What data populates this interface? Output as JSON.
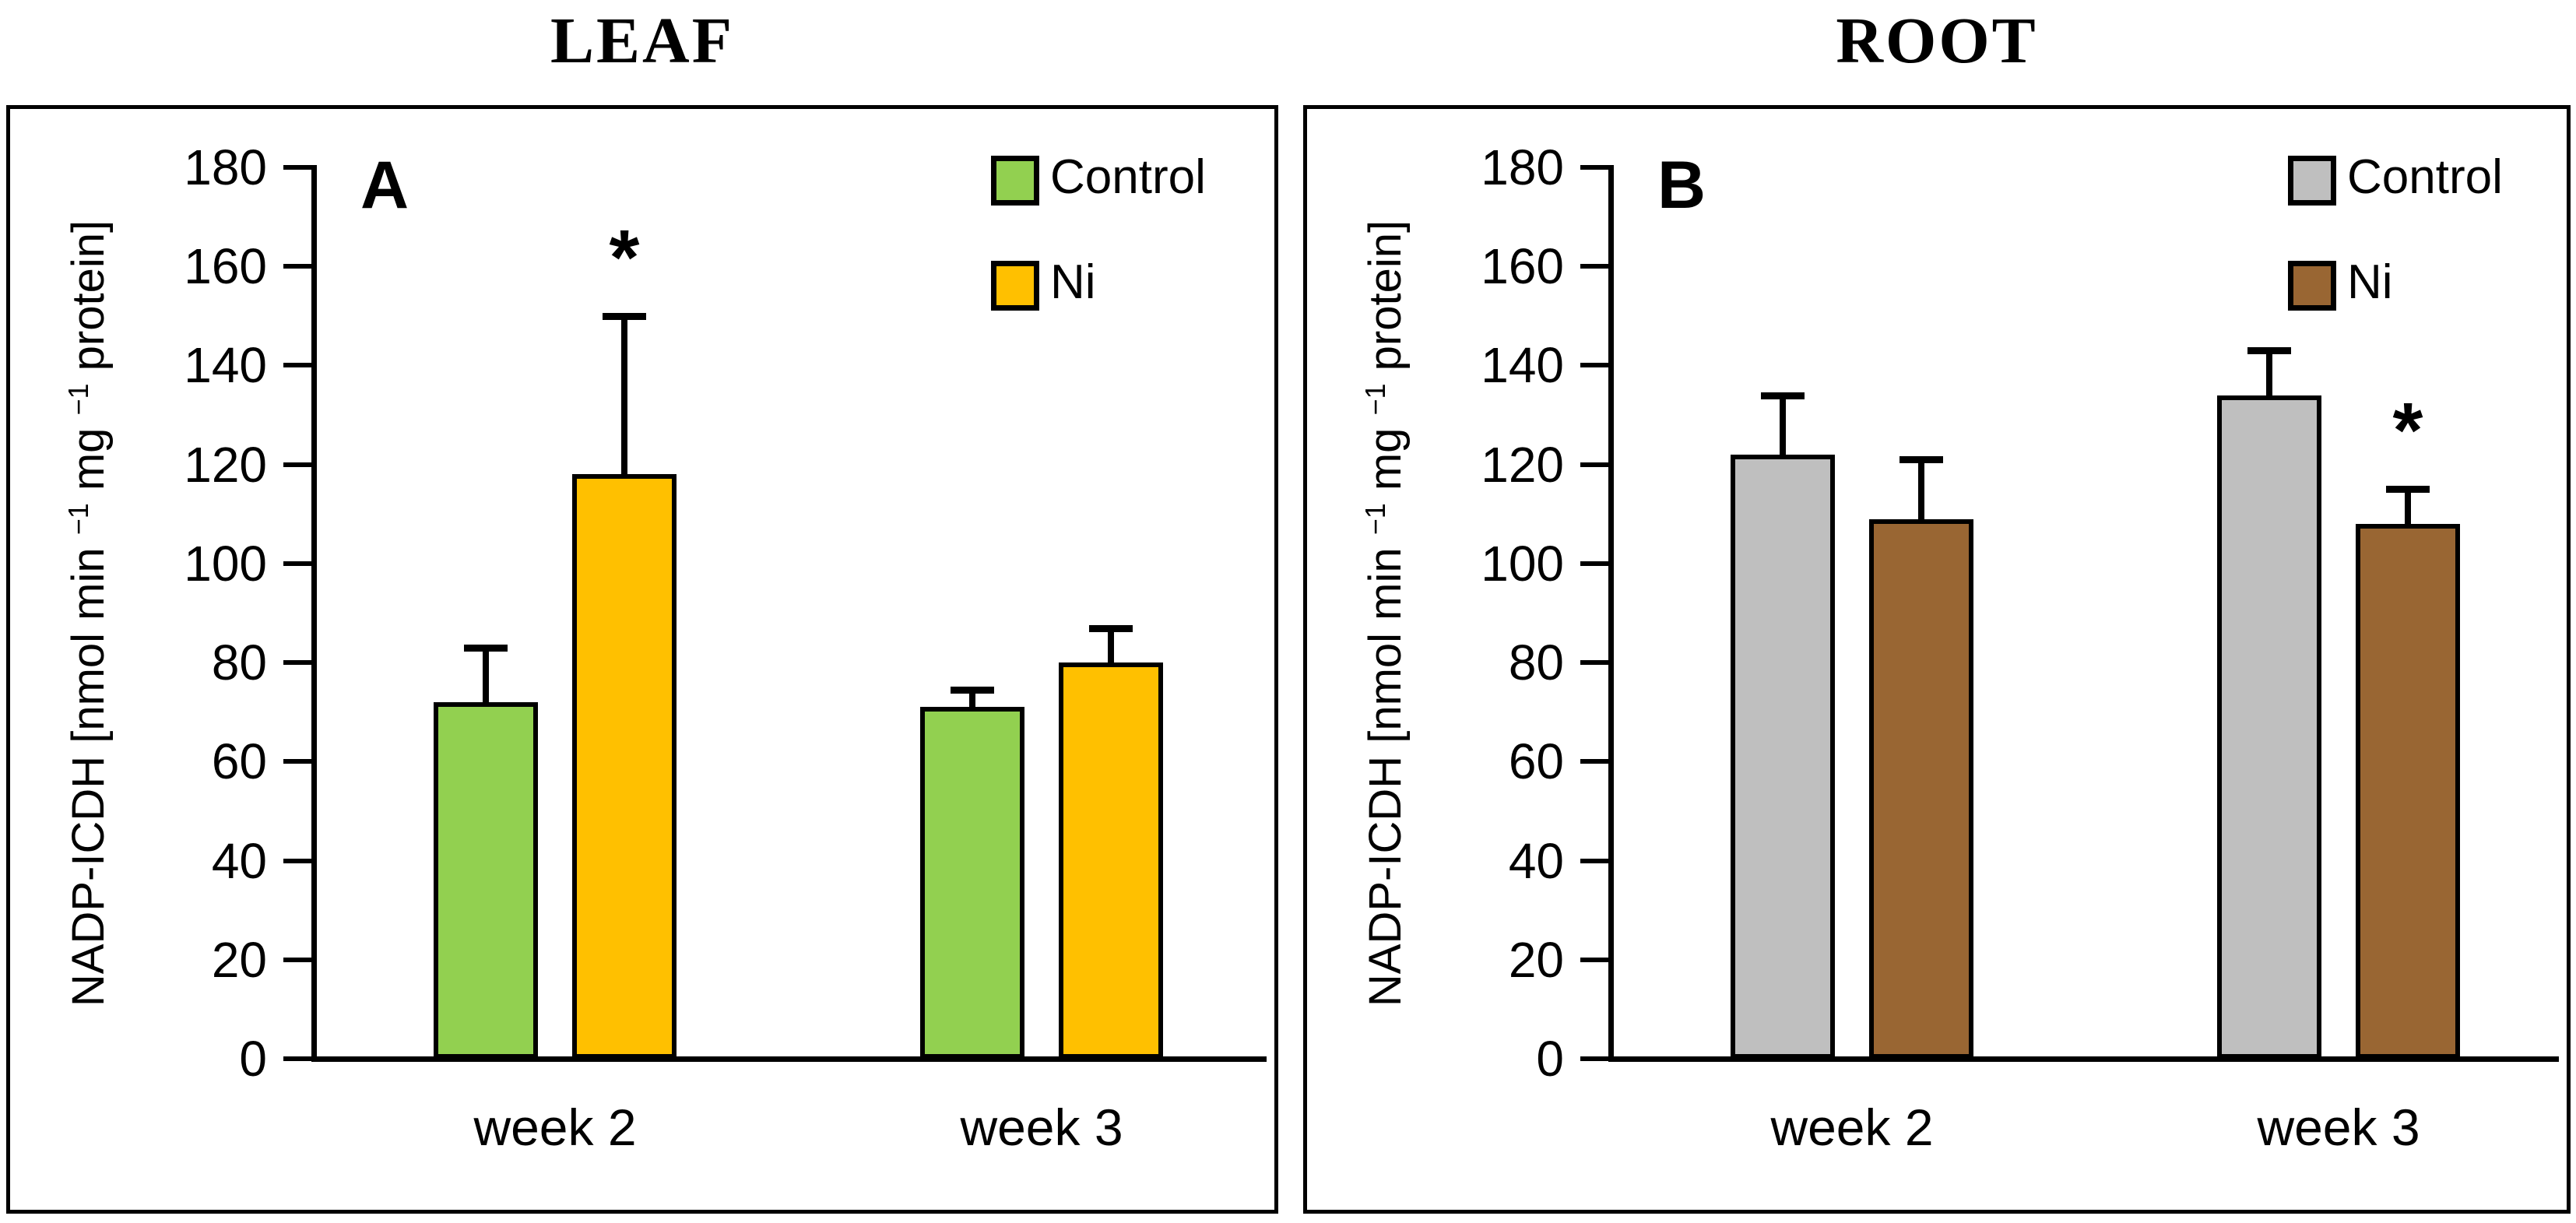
{
  "figure": {
    "background": "#ffffff",
    "y_axis_label_parts": {
      "prefix": "NADP-ICDH [nmol min ",
      "sup1": "−1",
      "mid": " mg ",
      "sup2": "−1",
      "suffix": " protein]"
    }
  },
  "chart_data": [
    {
      "type": "bar",
      "letter": "A",
      "title": "LEAF",
      "categories": [
        "week 2",
        "week 3"
      ],
      "series": [
        {
          "name": "Control",
          "color": "#92D050",
          "values": [
            72,
            71
          ],
          "errors_up": [
            11,
            3.5
          ]
        },
        {
          "name": "Ni",
          "color": "#FFC000",
          "values": [
            118,
            80
          ],
          "errors_up": [
            32,
            7
          ]
        }
      ],
      "significance": [
        {
          "symbol": "*",
          "series_index": 1,
          "category_index": 0
        }
      ],
      "ylabel": "NADP-ICDH [nmol min −1 mg −1 protein]",
      "ylim": [
        0,
        180
      ],
      "ytick_step": 20,
      "grid": false,
      "legend_position": "top-right",
      "error_bars": "upper SD, black caps"
    },
    {
      "type": "bar",
      "letter": "B",
      "title": "ROOT",
      "categories": [
        "week 2",
        "week 3"
      ],
      "series": [
        {
          "name": "Control",
          "color": "#BFBFBF",
          "values": [
            122,
            134
          ],
          "errors_up": [
            12,
            9
          ]
        },
        {
          "name": "Ni",
          "color": "#996633",
          "values": [
            109,
            108
          ],
          "errors_up": [
            12,
            7
          ]
        }
      ],
      "significance": [
        {
          "symbol": "*",
          "series_index": 1,
          "category_index": 1
        }
      ],
      "ylabel": "NADP-ICDH [nmol min −1 mg −1 protein]",
      "ylim": [
        0,
        180
      ],
      "ytick_step": 20,
      "grid": false,
      "legend_position": "top-right",
      "error_bars": "upper SD, black caps"
    }
  ]
}
